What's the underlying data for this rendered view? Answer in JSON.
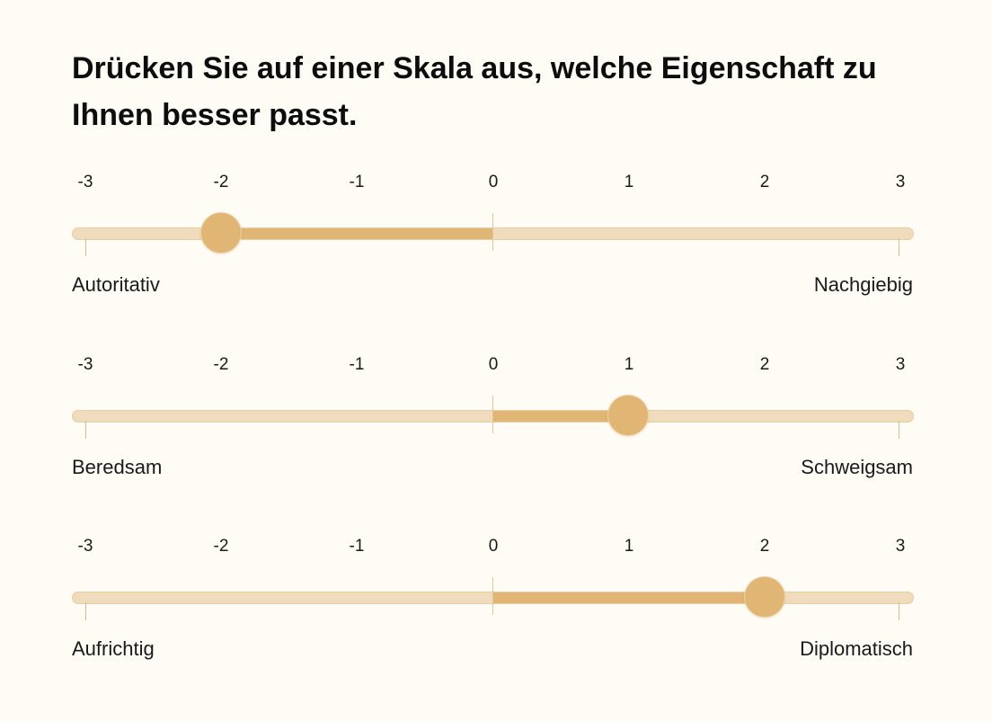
{
  "title": "Drücken Sie auf einer Skala aus, welche Eigenschaft zu Ihnen besser passt.",
  "tick_labels": [
    "-3",
    "-2",
    "-1",
    "0",
    "1",
    "2",
    "3"
  ],
  "scale_min": -3,
  "scale_max": 3,
  "colors": {
    "background": "#fffbf5",
    "track": "#f0dcbd",
    "accent": "#e1b574"
  },
  "scales": [
    {
      "left_label": "Autoritativ",
      "right_label": "Nachgiebig",
      "value": -2
    },
    {
      "left_label": "Beredsam",
      "right_label": "Schweigsam",
      "value": 1
    },
    {
      "left_label": "Aufrichtig",
      "right_label": "Diplomatisch",
      "value": 2
    }
  ]
}
